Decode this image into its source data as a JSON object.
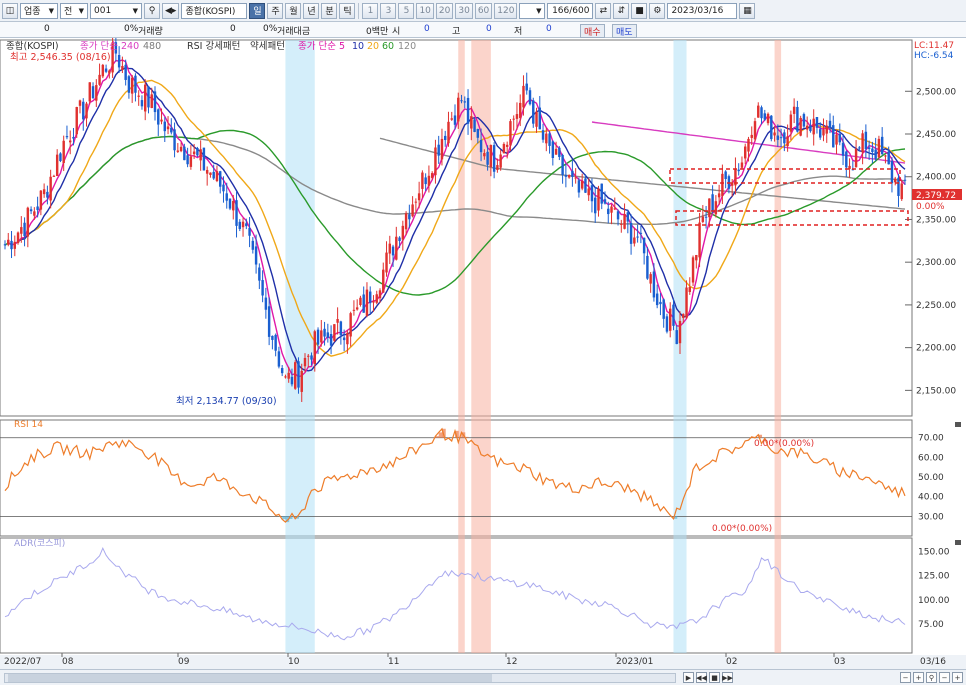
{
  "toolbar": {
    "market_select": "업종",
    "scope_select": "전",
    "code_value": "001",
    "name_value": "종합(KOSPI)",
    "period_buttons": [
      "일",
      "주",
      "월",
      "년",
      "분",
      "틱"
    ],
    "active_period": "일",
    "minute_buttons": [
      "1",
      "3",
      "5",
      "10",
      "20",
      "30",
      "60",
      "120"
    ],
    "count_value": "166/600",
    "date_value": "2023/03/16"
  },
  "inforow": {
    "v1": "0",
    "v2": "0%",
    "label_volume": "거래량",
    "v3": "0",
    "v4": "0%",
    "label_amount": "거래대금",
    "v5": "0백만",
    "label_open": "시",
    "open_val": "0",
    "label_high": "고",
    "high_val": "0",
    "label_low": "저",
    "low_val": "0",
    "buy_label": "매수",
    "sell_label": "매도"
  },
  "colors": {
    "up": "#e0312f",
    "down": "#1a5fd0",
    "ma5": "#e018a8",
    "ma10": "#1f2fa8",
    "ma20": "#f0a818",
    "ma60": "#2a9a2a",
    "ma120": "#8a8a8a",
    "ma240": "#d83cc0",
    "rsi": "#ee7d2a",
    "adr": "#a9a9ee",
    "hl_red": "#f7b0a0",
    "hl_blue": "#b0e0f5"
  },
  "legend": {
    "main": [
      "종합(KOSPI)",
      "종가 단순 240",
      "480",
      "RSI 강세패턴",
      "약세패턴",
      "종가 단순 5",
      "10",
      "20",
      "60",
      "120"
    ],
    "rsi": "RSI 14",
    "adr": "ADR(코스피)"
  },
  "labels": {
    "high_note": "최고 2,546.35 (08/16)",
    "low_note": "최저 2,134.77 (09/30)",
    "rsi_note_upper": "0.00*(0.00%)",
    "rsi_note_lower": "0.00*(0.00%)",
    "lc": "LC:11.47",
    "hc": "HC:-6.54",
    "price_tag": "2,379.72",
    "pct_tag": "0.00%"
  },
  "chart_data": {
    "type": "candlestick",
    "x_labels": [
      "2022/07",
      "08",
      "09",
      "10",
      "11",
      "12",
      "2023/01",
      "02",
      "03",
      "03/16"
    ],
    "y_ticks": [
      "2,500.00",
      "2,450.00",
      "2,400.00",
      "2,350.00",
      "2,300.00",
      "2,250.00",
      "2,200.00",
      "2,150.00"
    ],
    "rsi_ticks": [
      "70.00",
      "60.00",
      "50.00",
      "40.00",
      "30.00"
    ],
    "adr_ticks": [
      "150.00",
      "125.00",
      "100.00",
      "75.00"
    ],
    "keys": [
      [
        0,
        2320
      ],
      [
        6,
        2345
      ],
      [
        12,
        2380
      ],
      [
        18,
        2440
      ],
      [
        24,
        2480
      ],
      [
        30,
        2525
      ],
      [
        34,
        2546
      ],
      [
        38,
        2510
      ],
      [
        44,
        2490
      ],
      [
        50,
        2450
      ],
      [
        56,
        2430
      ],
      [
        62,
        2410
      ],
      [
        68,
        2380
      ],
      [
        74,
        2330
      ],
      [
        78,
        2270
      ],
      [
        82,
        2215
      ],
      [
        86,
        2160
      ],
      [
        90,
        2170
      ],
      [
        94,
        2200
      ],
      [
        98,
        2210
      ],
      [
        104,
        2225
      ],
      [
        110,
        2250
      ],
      [
        116,
        2290
      ],
      [
        122,
        2350
      ],
      [
        128,
        2395
      ],
      [
        132,
        2430
      ],
      [
        136,
        2465
      ],
      [
        140,
        2490
      ],
      [
        144,
        2445
      ],
      [
        150,
        2420
      ],
      [
        156,
        2470
      ],
      [
        160,
        2500
      ],
      [
        164,
        2450
      ],
      [
        170,
        2410
      ],
      [
        176,
        2380
      ],
      [
        182,
        2370
      ],
      [
        188,
        2350
      ],
      [
        194,
        2330
      ],
      [
        198,
        2280
      ],
      [
        202,
        2240
      ],
      [
        206,
        2220
      ],
      [
        210,
        2280
      ],
      [
        214,
        2350
      ],
      [
        220,
        2390
      ],
      [
        226,
        2420
      ],
      [
        230,
        2480
      ],
      [
        234,
        2460
      ],
      [
        238,
        2450
      ],
      [
        242,
        2470
      ],
      [
        246,
        2465
      ],
      [
        250,
        2455
      ],
      [
        256,
        2430
      ],
      [
        260,
        2420
      ],
      [
        264,
        2440
      ],
      [
        268,
        2430
      ],
      [
        272,
        2400
      ],
      [
        276,
        2380
      ]
    ],
    "rsi_keys": [
      [
        0,
        46
      ],
      [
        8,
        60
      ],
      [
        16,
        65
      ],
      [
        26,
        62
      ],
      [
        34,
        68
      ],
      [
        40,
        66
      ],
      [
        46,
        60
      ],
      [
        52,
        50
      ],
      [
        58,
        46
      ],
      [
        64,
        50
      ],
      [
        70,
        45
      ],
      [
        76,
        40
      ],
      [
        82,
        33
      ],
      [
        86,
        28
      ],
      [
        90,
        29
      ],
      [
        94,
        43
      ],
      [
        100,
        48
      ],
      [
        110,
        53
      ],
      [
        120,
        58
      ],
      [
        128,
        66
      ],
      [
        134,
        72
      ],
      [
        140,
        70
      ],
      [
        146,
        62
      ],
      [
        152,
        57
      ],
      [
        160,
        54
      ],
      [
        166,
        48
      ],
      [
        174,
        44
      ],
      [
        182,
        47
      ],
      [
        190,
        45
      ],
      [
        198,
        38
      ],
      [
        204,
        30
      ],
      [
        206,
        32
      ],
      [
        212,
        55
      ],
      [
        220,
        62
      ],
      [
        228,
        68
      ],
      [
        232,
        70
      ],
      [
        236,
        64
      ],
      [
        244,
        62
      ],
      [
        250,
        58
      ],
      [
        256,
        53
      ],
      [
        262,
        51
      ],
      [
        268,
        47
      ],
      [
        272,
        43
      ],
      [
        276,
        42
      ]
    ],
    "adr_keys": [
      [
        0,
        85
      ],
      [
        8,
        105
      ],
      [
        16,
        120
      ],
      [
        24,
        135
      ],
      [
        30,
        150
      ],
      [
        36,
        130
      ],
      [
        44,
        110
      ],
      [
        52,
        100
      ],
      [
        60,
        95
      ],
      [
        68,
        88
      ],
      [
        76,
        80
      ],
      [
        84,
        75
      ],
      [
        92,
        70
      ],
      [
        98,
        65
      ],
      [
        104,
        62
      ],
      [
        112,
        70
      ],
      [
        120,
        85
      ],
      [
        128,
        110
      ],
      [
        134,
        128
      ],
      [
        140,
        128
      ],
      [
        148,
        122
      ],
      [
        156,
        118
      ],
      [
        162,
        115
      ],
      [
        168,
        108
      ],
      [
        176,
        100
      ],
      [
        184,
        96
      ],
      [
        192,
        85
      ],
      [
        198,
        75
      ],
      [
        204,
        70
      ],
      [
        212,
        78
      ],
      [
        220,
        98
      ],
      [
        228,
        112
      ],
      [
        232,
        145
      ],
      [
        236,
        132
      ],
      [
        242,
        115
      ],
      [
        250,
        100
      ],
      [
        258,
        92
      ],
      [
        266,
        82
      ],
      [
        272,
        78
      ],
      [
        276,
        76
      ]
    ],
    "highlight_red": [
      [
        139,
        141
      ],
      [
        143,
        149
      ],
      [
        236,
        238
      ]
    ],
    "highlight_blue": [
      [
        86,
        95
      ],
      [
        205,
        209
      ]
    ]
  }
}
